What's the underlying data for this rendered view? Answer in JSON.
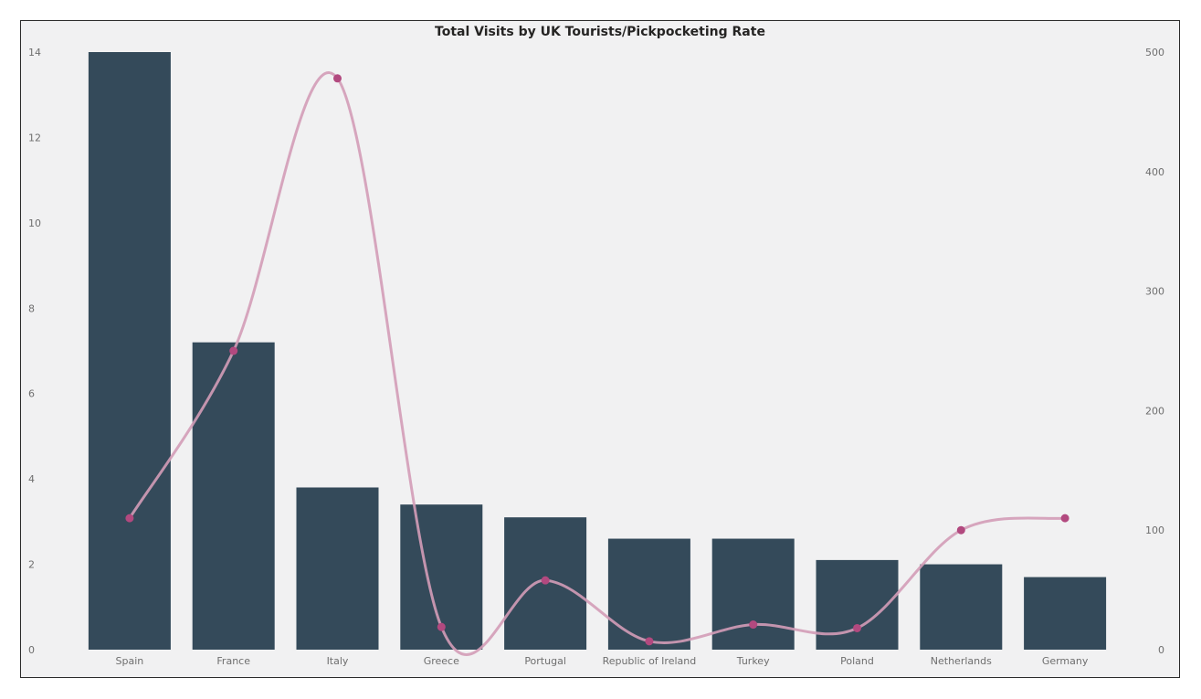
{
  "chart_data": {
    "type": "bar",
    "title": "Total Visits by UK Tourists/Pickpocketing Rate",
    "categories": [
      "Spain",
      "France",
      "Italy",
      "Greece",
      "Portugal",
      "Republic of Ireland",
      "Turkey",
      "Poland",
      "Netherlands",
      "Germany"
    ],
    "series": [
      {
        "type": "bar",
        "axis": "left",
        "values": [
          14.0,
          7.2,
          3.8,
          3.4,
          3.1,
          2.6,
          2.6,
          2.1,
          2.0,
          1.7
        ]
      },
      {
        "type": "line",
        "axis": "right",
        "values": [
          110,
          250,
          478,
          19,
          58,
          7,
          21,
          18,
          100,
          110
        ]
      }
    ],
    "y_left": {
      "range": [
        0,
        14
      ],
      "ticks": [
        0,
        2,
        4,
        6,
        8,
        10,
        12,
        14
      ]
    },
    "y_right": {
      "range": [
        0,
        500
      ],
      "ticks": [
        0,
        100,
        200,
        300,
        400,
        500
      ]
    },
    "grid": false,
    "colors": {
      "bar": "#344a5a",
      "line": "#d39cb7",
      "marker": "#b2497f",
      "background": "#f1f1f2"
    }
  }
}
